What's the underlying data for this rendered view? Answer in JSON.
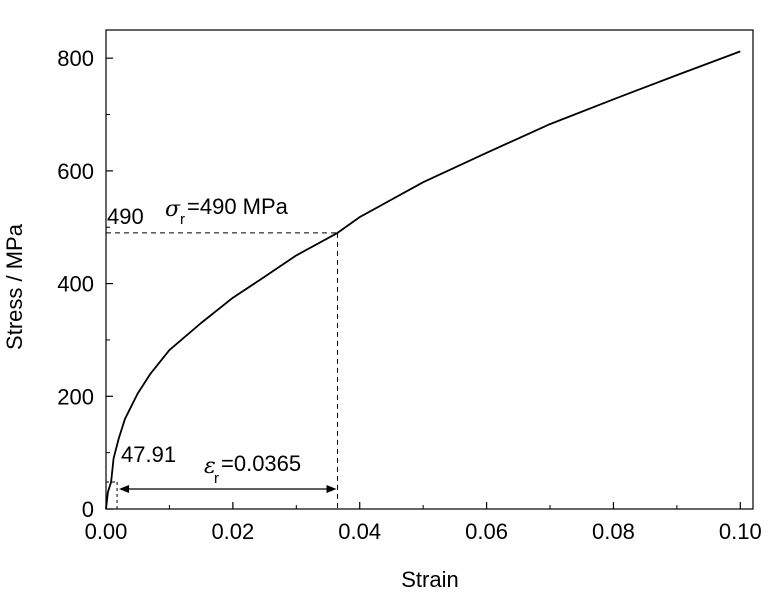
{
  "chart_data": {
    "type": "line",
    "title": "",
    "xlabel": "Strain",
    "ylabel": "Stress / MPa",
    "xlim": [
      0,
      0.102
    ],
    "ylim": [
      0,
      850
    ],
    "x_ticks": [
      0,
      0.02,
      0.04,
      0.06,
      0.08,
      0.1
    ],
    "x_tick_labels": [
      "0.00",
      "0.02",
      "0.04",
      "0.06",
      "0.08",
      "0.10"
    ],
    "y_ticks": [
      0,
      200,
      400,
      600,
      800
    ],
    "y_tick_labels": [
      "0",
      "200",
      "400",
      "600",
      "800"
    ],
    "grid": false,
    "legend": "none",
    "series": [
      {
        "color": "#000000",
        "x": [
          0,
          0.0003,
          0.0008,
          0.0012,
          0.002,
          0.003,
          0.005,
          0.007,
          0.01,
          0.015,
          0.02,
          0.025,
          0.03,
          0.0365,
          0.04,
          0.05,
          0.06,
          0.07,
          0.08,
          0.09,
          0.1
        ],
        "y": [
          0,
          30,
          47.91,
          90,
          125,
          160,
          205,
          240,
          282,
          330,
          375,
          412,
          450,
          490,
          518,
          580,
          632,
          683,
          727,
          770,
          812
        ]
      }
    ],
    "annotations": {
      "stress_value_label": "490",
      "stress_symbol": "σ",
      "stress_subscript": "r",
      "stress_text": "=490 MPa",
      "stress_level": 490,
      "strain_point": 0.0365,
      "low_point_label": "47.91",
      "low_point_y": 47.91,
      "low_point_x": 0.0008,
      "strain_symbol": "ε",
      "strain_subscript": "r",
      "strain_text": "=0.0365"
    }
  }
}
